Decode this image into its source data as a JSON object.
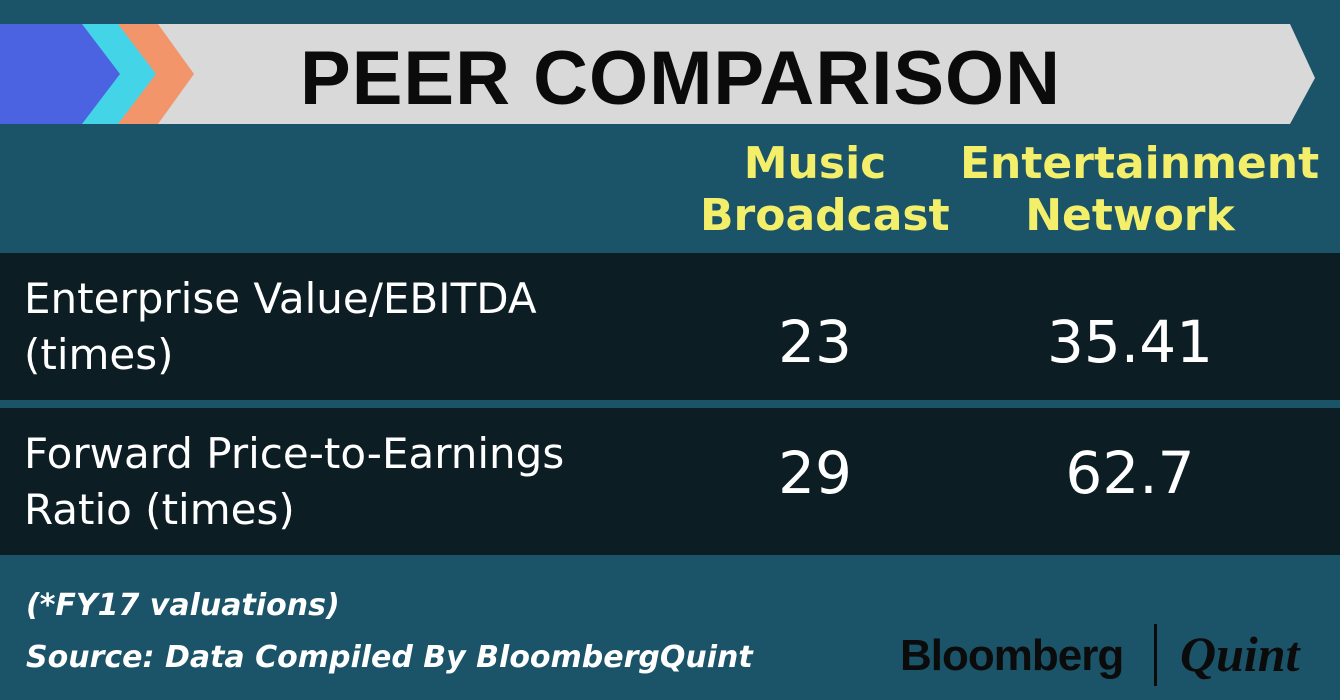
{
  "title": "PEER COMPARISON",
  "colors": {
    "background": "#1b5468",
    "row_background": "#0c1e24",
    "header_text": "#f3ef6a",
    "banner": "#d9d9d9",
    "chevron_blue": "#4b63e0",
    "chevron_cyan": "#44d4e8",
    "chevron_orange": "#f2956a"
  },
  "chart_data": {
    "type": "table",
    "columns": [
      "Music\nBroadcast",
      "Entertainment\nNetwork"
    ],
    "rows": [
      {
        "label": "Enterprise Value/EBITDA\n(times)",
        "values": [
          "23",
          "35.41"
        ]
      },
      {
        "label": "Forward Price-to-Earnings\nRatio (times)",
        "values": [
          "29",
          "62.7"
        ]
      }
    ]
  },
  "footer": {
    "note": "(*FY17 valuations)",
    "source": "Source: Data Compiled By BloombergQuint"
  },
  "logo": {
    "left": "Bloomberg",
    "right": "Quint"
  }
}
